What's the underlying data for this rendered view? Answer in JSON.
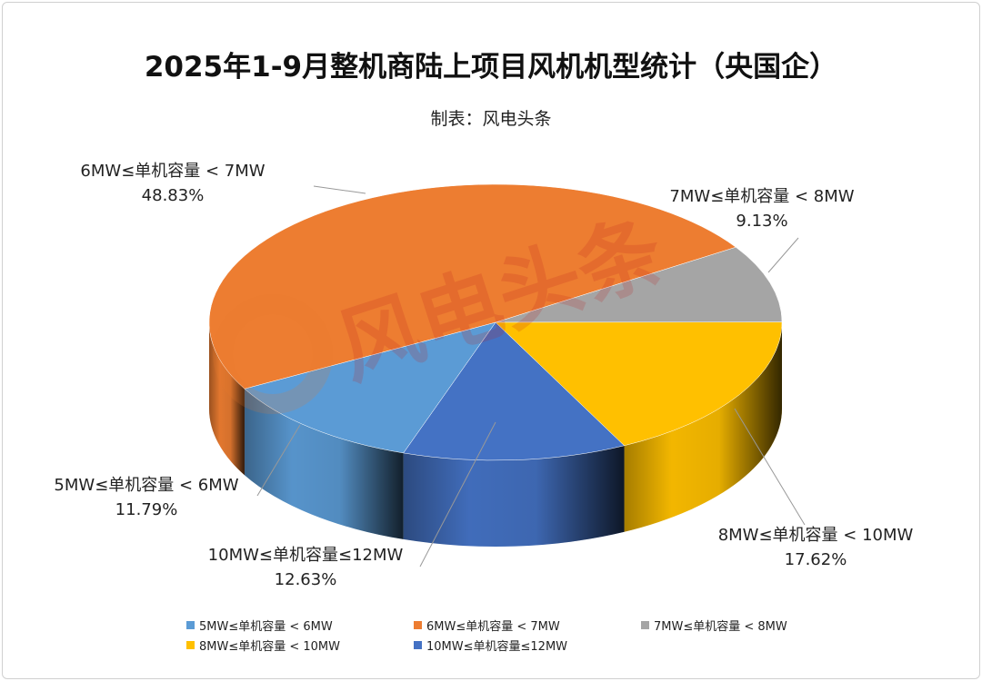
{
  "chart_data": {
    "type": "pie",
    "style": "3d",
    "title": "2025年1-9月整机商陆上项目风机机型统计（央国企）",
    "subtitle": "制表：风电头条",
    "watermark": "风电头条",
    "legend_position": "bottom",
    "slices": [
      {
        "label": "5MW≤单机容量 < 6MW",
        "value": 11.79,
        "value_label": "11.79%",
        "color": "#5b9bd5"
      },
      {
        "label": "6MW≤单机容量 < 7MW",
        "value": 48.83,
        "value_label": "48.83%",
        "color": "#ed7d31"
      },
      {
        "label": "7MW≤单机容量 < 8MW",
        "value": 9.13,
        "value_label": "9.13%",
        "color": "#a5a5a5"
      },
      {
        "label": "8MW≤单机容量 < 10MW",
        "value": 17.62,
        "value_label": "17.62%",
        "color": "#ffc000"
      },
      {
        "label": "10MW≤单机容量≤12MW",
        "value": 12.63,
        "value_label": "12.63%",
        "color": "#4472c4"
      }
    ]
  }
}
